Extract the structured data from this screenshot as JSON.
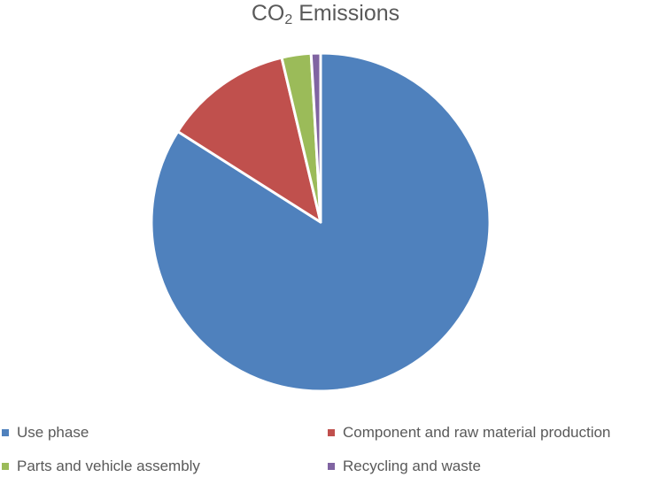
{
  "chart_data": {
    "type": "pie",
    "title": "CO",
    "title_subscript": "2",
    "title_suffix": " Emissions",
    "slices": [
      {
        "label": "Use phase",
        "value": 84.0,
        "color": "#4F81BD"
      },
      {
        "label": "Component and raw material production",
        "value": 12.3,
        "color": "#C0504D"
      },
      {
        "label": "Parts and vehicle assembly",
        "value": 2.8,
        "color": "#9BBB59"
      },
      {
        "label": "Recycling and waste",
        "value": 0.9,
        "color": "#8064A2"
      }
    ],
    "start_angle_deg": 0,
    "direction": "clockwise",
    "legend_position": "bottom"
  }
}
